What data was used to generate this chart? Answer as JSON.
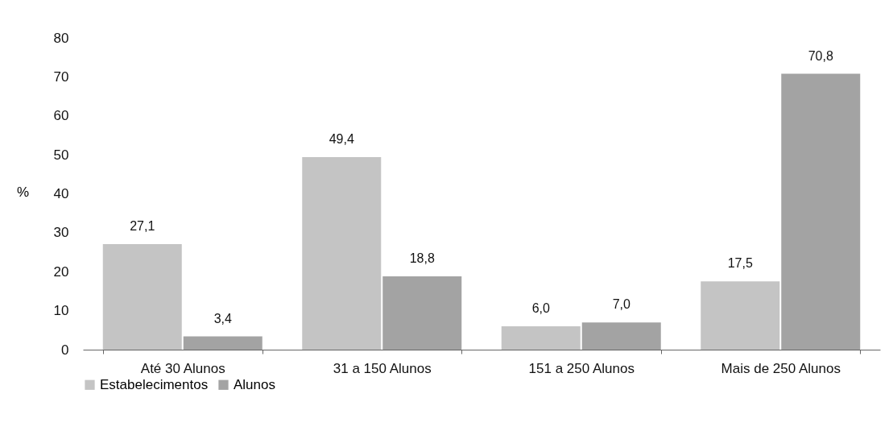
{
  "chart_data": {
    "type": "bar",
    "ylabel": "%",
    "categories": [
      "Até 30 Alunos",
      "31 a 150 Alunos",
      "151 a 250 Alunos",
      "Mais de 250 Alunos"
    ],
    "series": [
      {
        "name": "Estabelecimentos",
        "color": "#c4c4c4",
        "values": [
          27.1,
          49.4,
          6.0,
          17.5
        ],
        "value_labels": [
          "27,1",
          "49,4",
          "6,0",
          "17,5"
        ]
      },
      {
        "name": "Alunos",
        "color": "#a3a3a3",
        "values": [
          3.4,
          18.8,
          7.0,
          70.8
        ],
        "value_labels": [
          "3,4",
          "18,8",
          "7,0",
          "70,8"
        ]
      }
    ],
    "ylim": [
      0,
      80
    ],
    "yticks": [
      0,
      10,
      20,
      30,
      40,
      50,
      60,
      70,
      80
    ],
    "grid": false,
    "legend": "bottom"
  }
}
